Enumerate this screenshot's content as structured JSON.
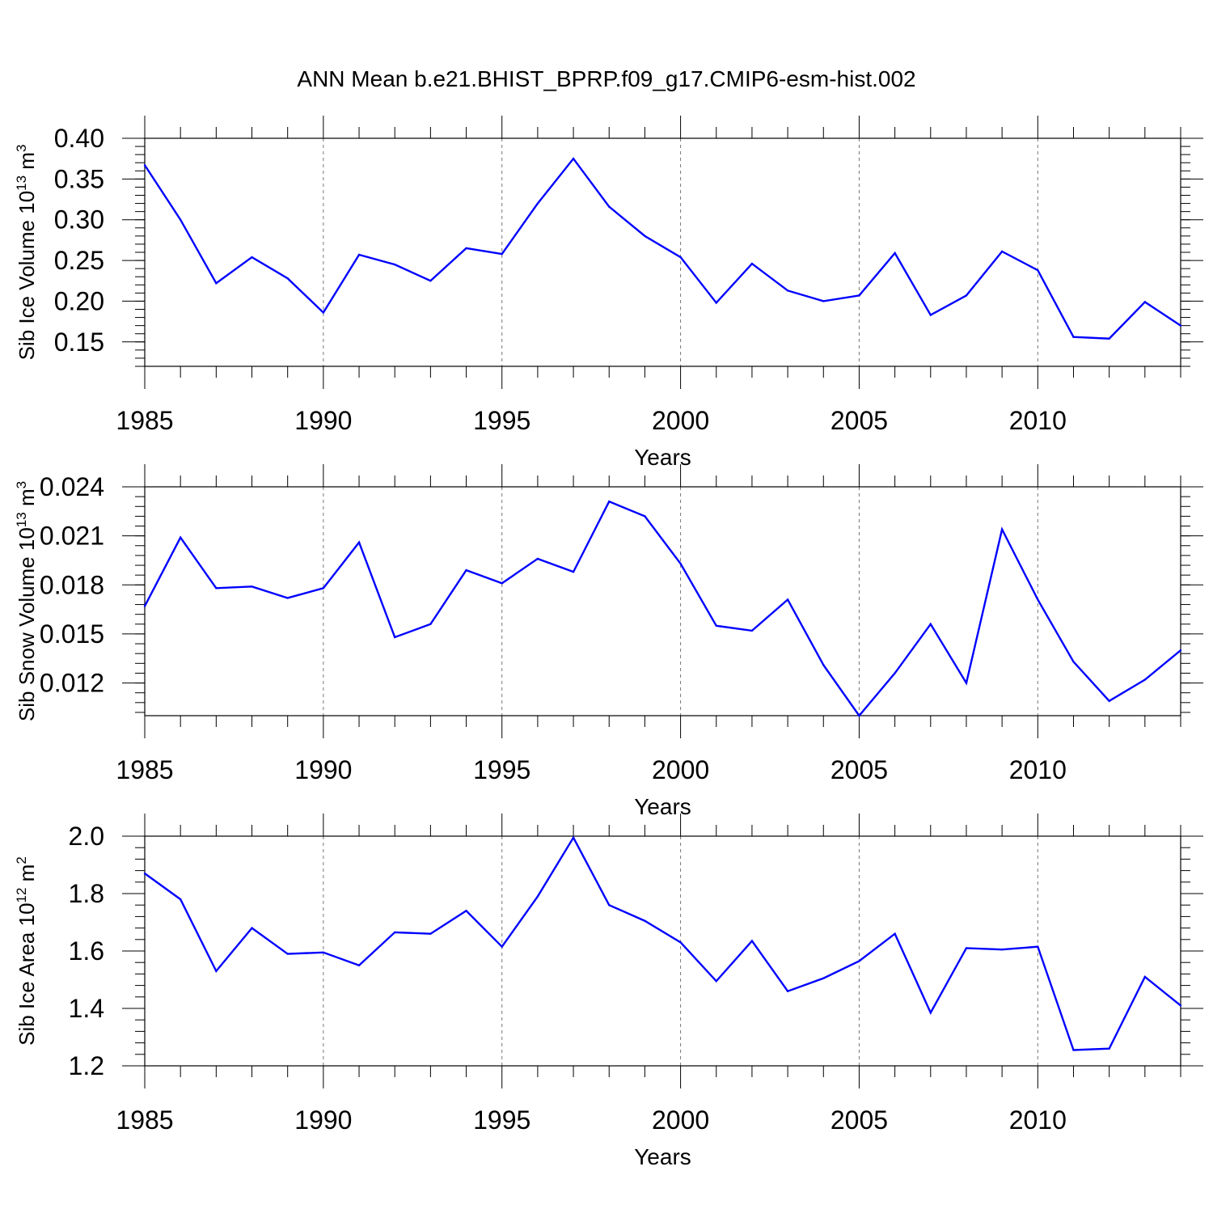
{
  "title": "ANN Mean b.e21.BHIST_BPRP.f09_g17.CMIP6-esm-hist.002",
  "line_color": "#0000ff",
  "chart_data": [
    {
      "type": "line",
      "ylabel": "Sib Ice Volume 10",
      "ylabel_exp": "13",
      "ylabel_unit": "m",
      "ylabel_unit_exp": "3",
      "xlabel": "Years",
      "xlim": [
        1985,
        2014
      ],
      "ylim": [
        0.12,
        0.4
      ],
      "xticks": [
        1985,
        1990,
        1995,
        2000,
        2005,
        2010
      ],
      "yticks": [
        0.15,
        0.2,
        0.25,
        0.3,
        0.35,
        0.4
      ],
      "ytick_labels": [
        "0.15",
        "0.20",
        "0.25",
        "0.30",
        "0.35",
        "0.40"
      ],
      "yminor_step": 0.01,
      "x": [
        1985,
        1986,
        1987,
        1988,
        1989,
        1990,
        1991,
        1992,
        1993,
        1994,
        1995,
        1996,
        1997,
        1998,
        1999,
        2000,
        2001,
        2002,
        2003,
        2004,
        2005,
        2006,
        2007,
        2008,
        2009,
        2010,
        2011,
        2012,
        2013,
        2014
      ],
      "values": [
        0.367,
        0.3,
        0.222,
        0.254,
        0.228,
        0.186,
        0.257,
        0.245,
        0.225,
        0.265,
        0.258,
        0.32,
        0.375,
        0.316,
        0.28,
        0.254,
        0.198,
        0.246,
        0.213,
        0.2,
        0.207,
        0.259,
        0.183,
        0.207,
        0.261,
        0.238,
        0.156,
        0.154,
        0.199,
        0.17
      ]
    },
    {
      "type": "line",
      "ylabel": "Sib Snow Volume 10",
      "ylabel_exp": "13",
      "ylabel_unit": "m",
      "ylabel_unit_exp": "3",
      "xlabel": "Years",
      "xlim": [
        1985,
        2014
      ],
      "ylim": [
        0.01,
        0.024
      ],
      "xticks": [
        1985,
        1990,
        1995,
        2000,
        2005,
        2010
      ],
      "yticks": [
        0.012,
        0.015,
        0.018,
        0.021,
        0.024
      ],
      "ytick_labels": [
        "0.012",
        "0.015",
        "0.018",
        "0.021",
        "0.024"
      ],
      "yminor_step": 0.0006,
      "x": [
        1985,
        1986,
        1987,
        1988,
        1989,
        1990,
        1991,
        1992,
        1993,
        1994,
        1995,
        1996,
        1997,
        1998,
        1999,
        2000,
        2001,
        2002,
        2003,
        2004,
        2005,
        2006,
        2007,
        2008,
        2009,
        2010,
        2011,
        2012,
        2013,
        2014
      ],
      "values": [
        0.0167,
        0.0209,
        0.0178,
        0.0179,
        0.0172,
        0.0178,
        0.0206,
        0.0148,
        0.0156,
        0.0189,
        0.0181,
        0.0196,
        0.0188,
        0.0231,
        0.0222,
        0.0193,
        0.0155,
        0.0152,
        0.0171,
        0.0131,
        0.01,
        0.0126,
        0.0156,
        0.012,
        0.0214,
        0.0171,
        0.0133,
        0.0109,
        0.0122,
        0.014
      ]
    },
    {
      "type": "line",
      "ylabel": "Sib Ice Area 10",
      "ylabel_exp": "12",
      "ylabel_unit": "m",
      "ylabel_unit_exp": "2",
      "xlabel": "Years",
      "xlim": [
        1985,
        2014
      ],
      "ylim": [
        1.2,
        2.0
      ],
      "xticks": [
        1985,
        1990,
        1995,
        2000,
        2005,
        2010
      ],
      "yticks": [
        1.2,
        1.4,
        1.6,
        1.8,
        2.0
      ],
      "ytick_labels": [
        "1.2",
        "1.4",
        "1.6",
        "1.8",
        "2.0"
      ],
      "yminor_step": 0.04,
      "x": [
        1985,
        1986,
        1987,
        1988,
        1989,
        1990,
        1991,
        1992,
        1993,
        1994,
        1995,
        1996,
        1997,
        1998,
        1999,
        2000,
        2001,
        2002,
        2003,
        2004,
        2005,
        2006,
        2007,
        2008,
        2009,
        2010,
        2011,
        2012,
        2013,
        2014
      ],
      "values": [
        1.87,
        1.78,
        1.53,
        1.68,
        1.59,
        1.595,
        1.55,
        1.665,
        1.66,
        1.74,
        1.615,
        1.79,
        1.995,
        1.76,
        1.705,
        1.63,
        1.495,
        1.635,
        1.46,
        1.505,
        1.565,
        1.66,
        1.385,
        1.61,
        1.605,
        1.615,
        1.255,
        1.26,
        1.51,
        1.41
      ]
    }
  ]
}
